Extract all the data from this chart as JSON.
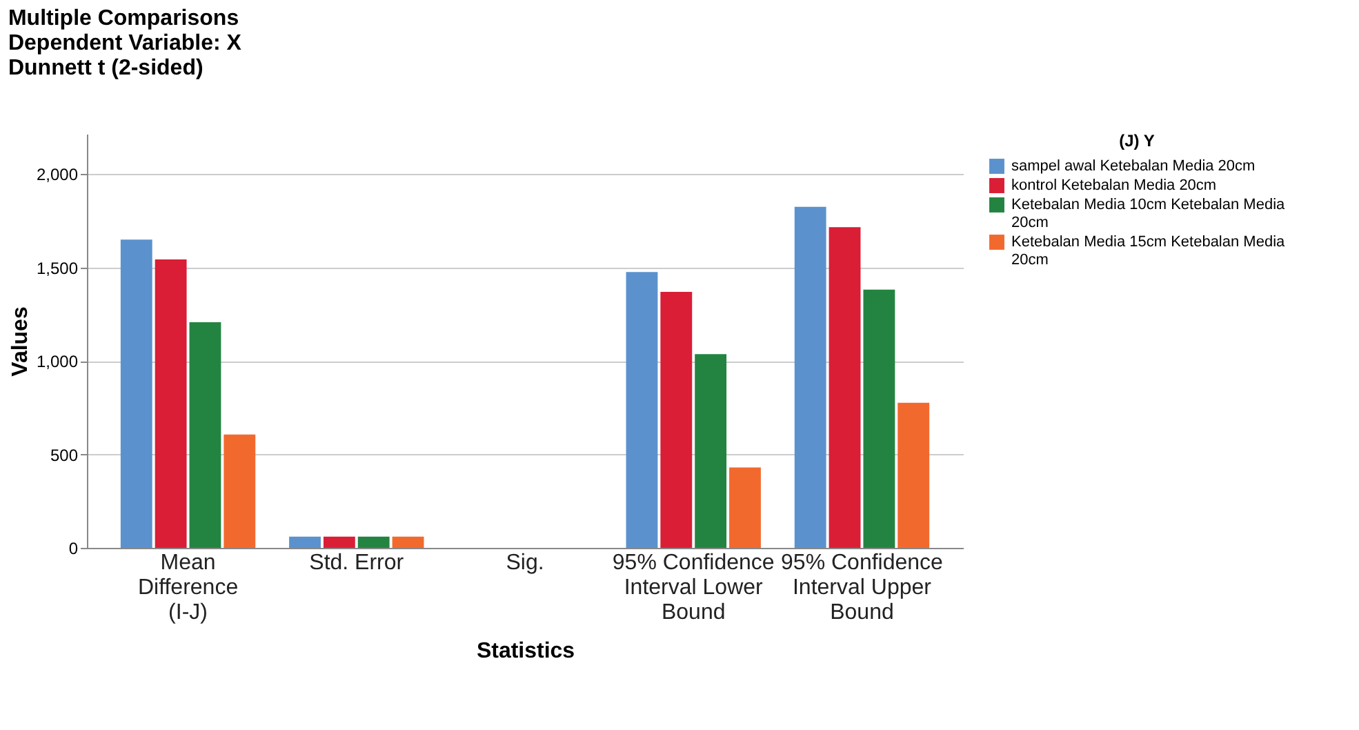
{
  "chart_data": {
    "type": "bar",
    "title": [
      "Multiple Comparisons",
      "Dependent Variable: X",
      "Dunnett t (2-sided)"
    ],
    "xlabel": "Statistics",
    "ylabel": "Values",
    "legend_title": "(J) Y",
    "categories": [
      "Mean Difference (I-J)",
      "Std. Error",
      "Sig.",
      "95% Confidence Interval Lower Bound",
      "95% Confidence Interval Upper Bound"
    ],
    "series": [
      {
        "name": "sampel awal Ketebalan Media 20cm",
        "color": "#5b92cd",
        "values": [
          1649,
          60,
          0,
          1476,
          1825
        ]
      },
      {
        "name": "kontrol Ketebalan Media 20cm",
        "color": "#d91e36",
        "values": [
          1543,
          60,
          0,
          1370,
          1716
        ]
      },
      {
        "name": "Ketebalan Media 10cm Ketebalan Media 20cm",
        "color": "#238441",
        "values": [
          1207,
          60,
          0,
          1036,
          1382
        ]
      },
      {
        "name": "Ketebalan Media 15cm Ketebalan Media 20cm",
        "color": "#f2692e",
        "values": [
          606,
          60,
          0,
          430,
          776
        ]
      }
    ],
    "ylim": [
      0,
      2215
    ],
    "yticks": [
      0,
      500,
      {
        "value": 1000,
        "label": "1,000"
      },
      {
        "value": 1500,
        "label": "1,500"
      },
      {
        "value": 2000,
        "label": "2,000"
      }
    ],
    "grid": "y",
    "legend": "top right"
  }
}
